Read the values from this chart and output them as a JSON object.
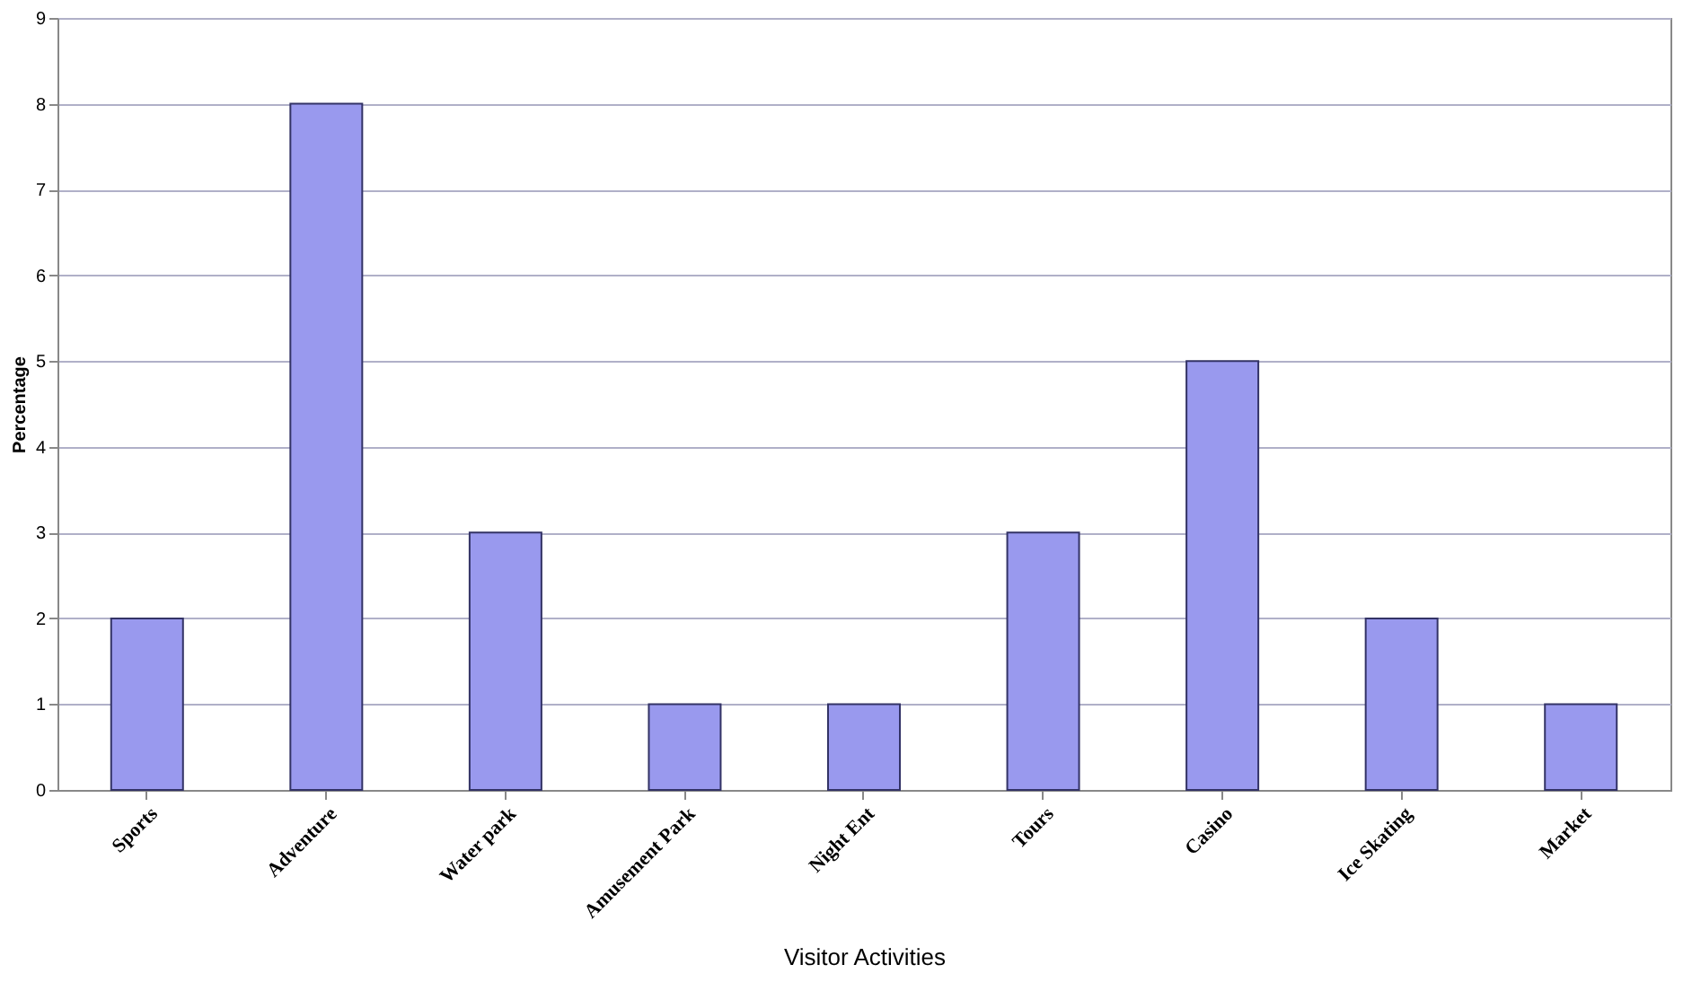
{
  "chart_data": {
    "type": "bar",
    "xlabel": "Visitor Activities",
    "ylabel": "Percentage",
    "categories": [
      "Sports",
      "Adventure",
      "Water park",
      "Amusement Park",
      "Night Ent",
      "Tours",
      "Casino",
      "Ice Skating",
      "Market"
    ],
    "values": [
      2,
      8,
      3,
      1,
      1,
      3,
      5,
      2,
      1
    ],
    "color": "#9999ee",
    "ylim": [
      0,
      9
    ],
    "yticks": [
      0,
      1,
      2,
      3,
      4,
      5,
      6,
      7,
      8,
      9
    ],
    "grid": "y"
  }
}
